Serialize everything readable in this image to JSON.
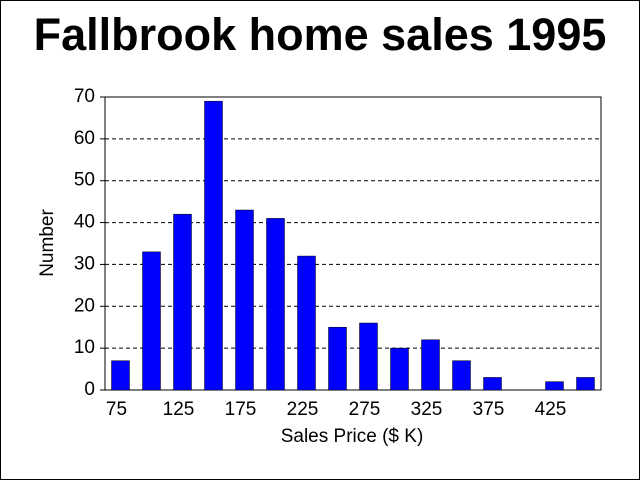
{
  "chart_data": {
    "type": "bar",
    "title": "Fallbrook home sales 1995",
    "x_label": "Sales Price ($ K)",
    "y_label": "Number",
    "categories": [
      "75",
      null,
      "125",
      null,
      "175",
      null,
      "225",
      null,
      "275",
      null,
      "325",
      null,
      "375",
      null,
      "425",
      null
    ],
    "values": [
      7,
      33,
      42,
      69,
      43,
      41,
      32,
      15,
      16,
      10,
      12,
      7,
      3,
      0,
      2,
      3
    ],
    "color": "#0000ff",
    "ylim": [
      0,
      70
    ],
    "yticks": [
      0,
      10,
      20,
      30,
      40,
      50,
      60,
      70
    ],
    "grid": true
  }
}
